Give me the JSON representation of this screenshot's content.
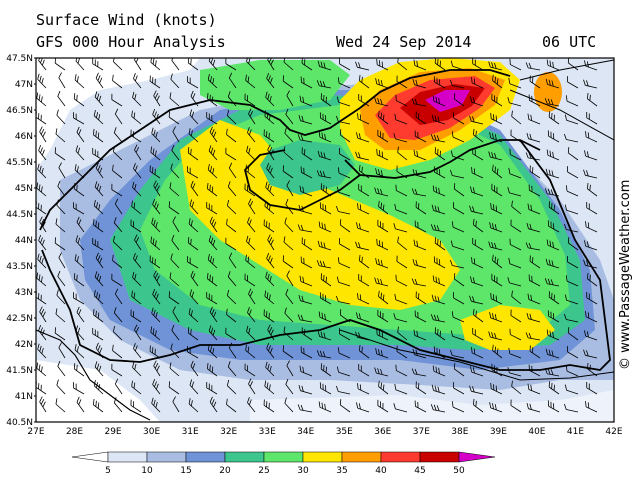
{
  "header": {
    "title": "Surface Wind (knots)",
    "subtitle": "GFS 000 Hour Analysis",
    "date": "Wed 24 Sep 2014",
    "time": "06 UTC"
  },
  "credit": "© www.PassageWeather.com",
  "axes": {
    "lat_labels": [
      "47.5N",
      "47N",
      "46.5N",
      "46N",
      "45.5N",
      "45N",
      "44.5N",
      "44N",
      "43.5N",
      "43N",
      "42.5N",
      "42N",
      "41.5N",
      "41N",
      "40.5N"
    ],
    "lon_labels": [
      "27E",
      "28E",
      "29E",
      "30E",
      "31E",
      "32E",
      "33E",
      "34E",
      "35E",
      "36E",
      "37E",
      "38E",
      "39E",
      "40E",
      "41E",
      "42E"
    ]
  },
  "legend": {
    "ticks": [
      "5",
      "10",
      "15",
      "20",
      "25",
      "30",
      "35",
      "40",
      "45",
      "50"
    ],
    "colors": [
      "#ffffff",
      "#dce6f5",
      "#a9bde3",
      "#6f93d6",
      "#3cc58c",
      "#5ee66a",
      "#ffe600",
      "#ff9e00",
      "#ff3b30",
      "#c80000",
      "#d400c8"
    ]
  },
  "colors": {
    "land": "#ffffff",
    "calm": "#dce6f5",
    "light": "#a9bde3",
    "moderate": "#6f93d6",
    "fresh": "#3cc58c",
    "strong": "#5ee66a",
    "gale": "#ffe600",
    "storm": "#ff9e00",
    "severe": "#ff3b30",
    "violent": "#c80000",
    "extreme": "#d400c8"
  }
}
